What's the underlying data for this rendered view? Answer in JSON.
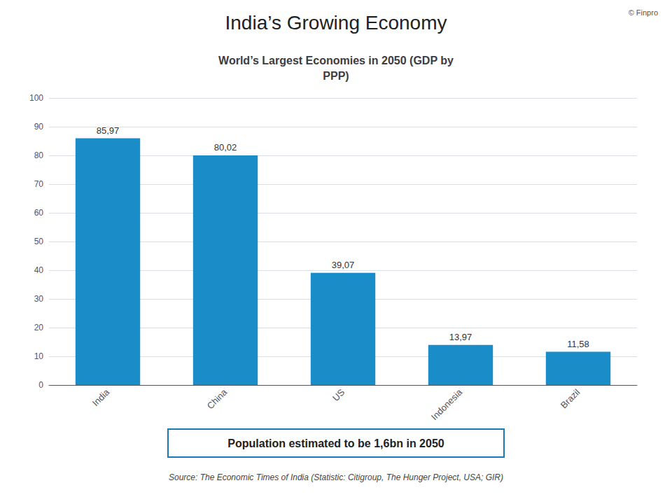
{
  "chart_data": {
    "type": "bar",
    "title": "World’s Largest Economies in 2050 (GDP by\nPPP)",
    "categories": [
      "India",
      "China",
      "US",
      "Indonesia",
      "Brazil"
    ],
    "values": [
      85.97,
      80.02,
      39.07,
      13.97,
      11.58
    ],
    "value_labels": [
      "85,97",
      "80,02",
      "39,07",
      "13,97",
      "11,58"
    ],
    "data_labels": true,
    "color": "#1a8cc8",
    "ylim": [
      0,
      100
    ],
    "yticks": [
      0,
      10,
      20,
      30,
      40,
      50,
      60,
      70,
      80,
      90,
      100
    ],
    "grid": true,
    "annotations": [
      "India’s Growing Economy",
      "© Finpro",
      "Population estimated to be 1,6bn in 2050",
      "Source: The Economic Times of India (Statistic: Citigroup, The Hunger Project, USA; GIR)"
    ]
  }
}
